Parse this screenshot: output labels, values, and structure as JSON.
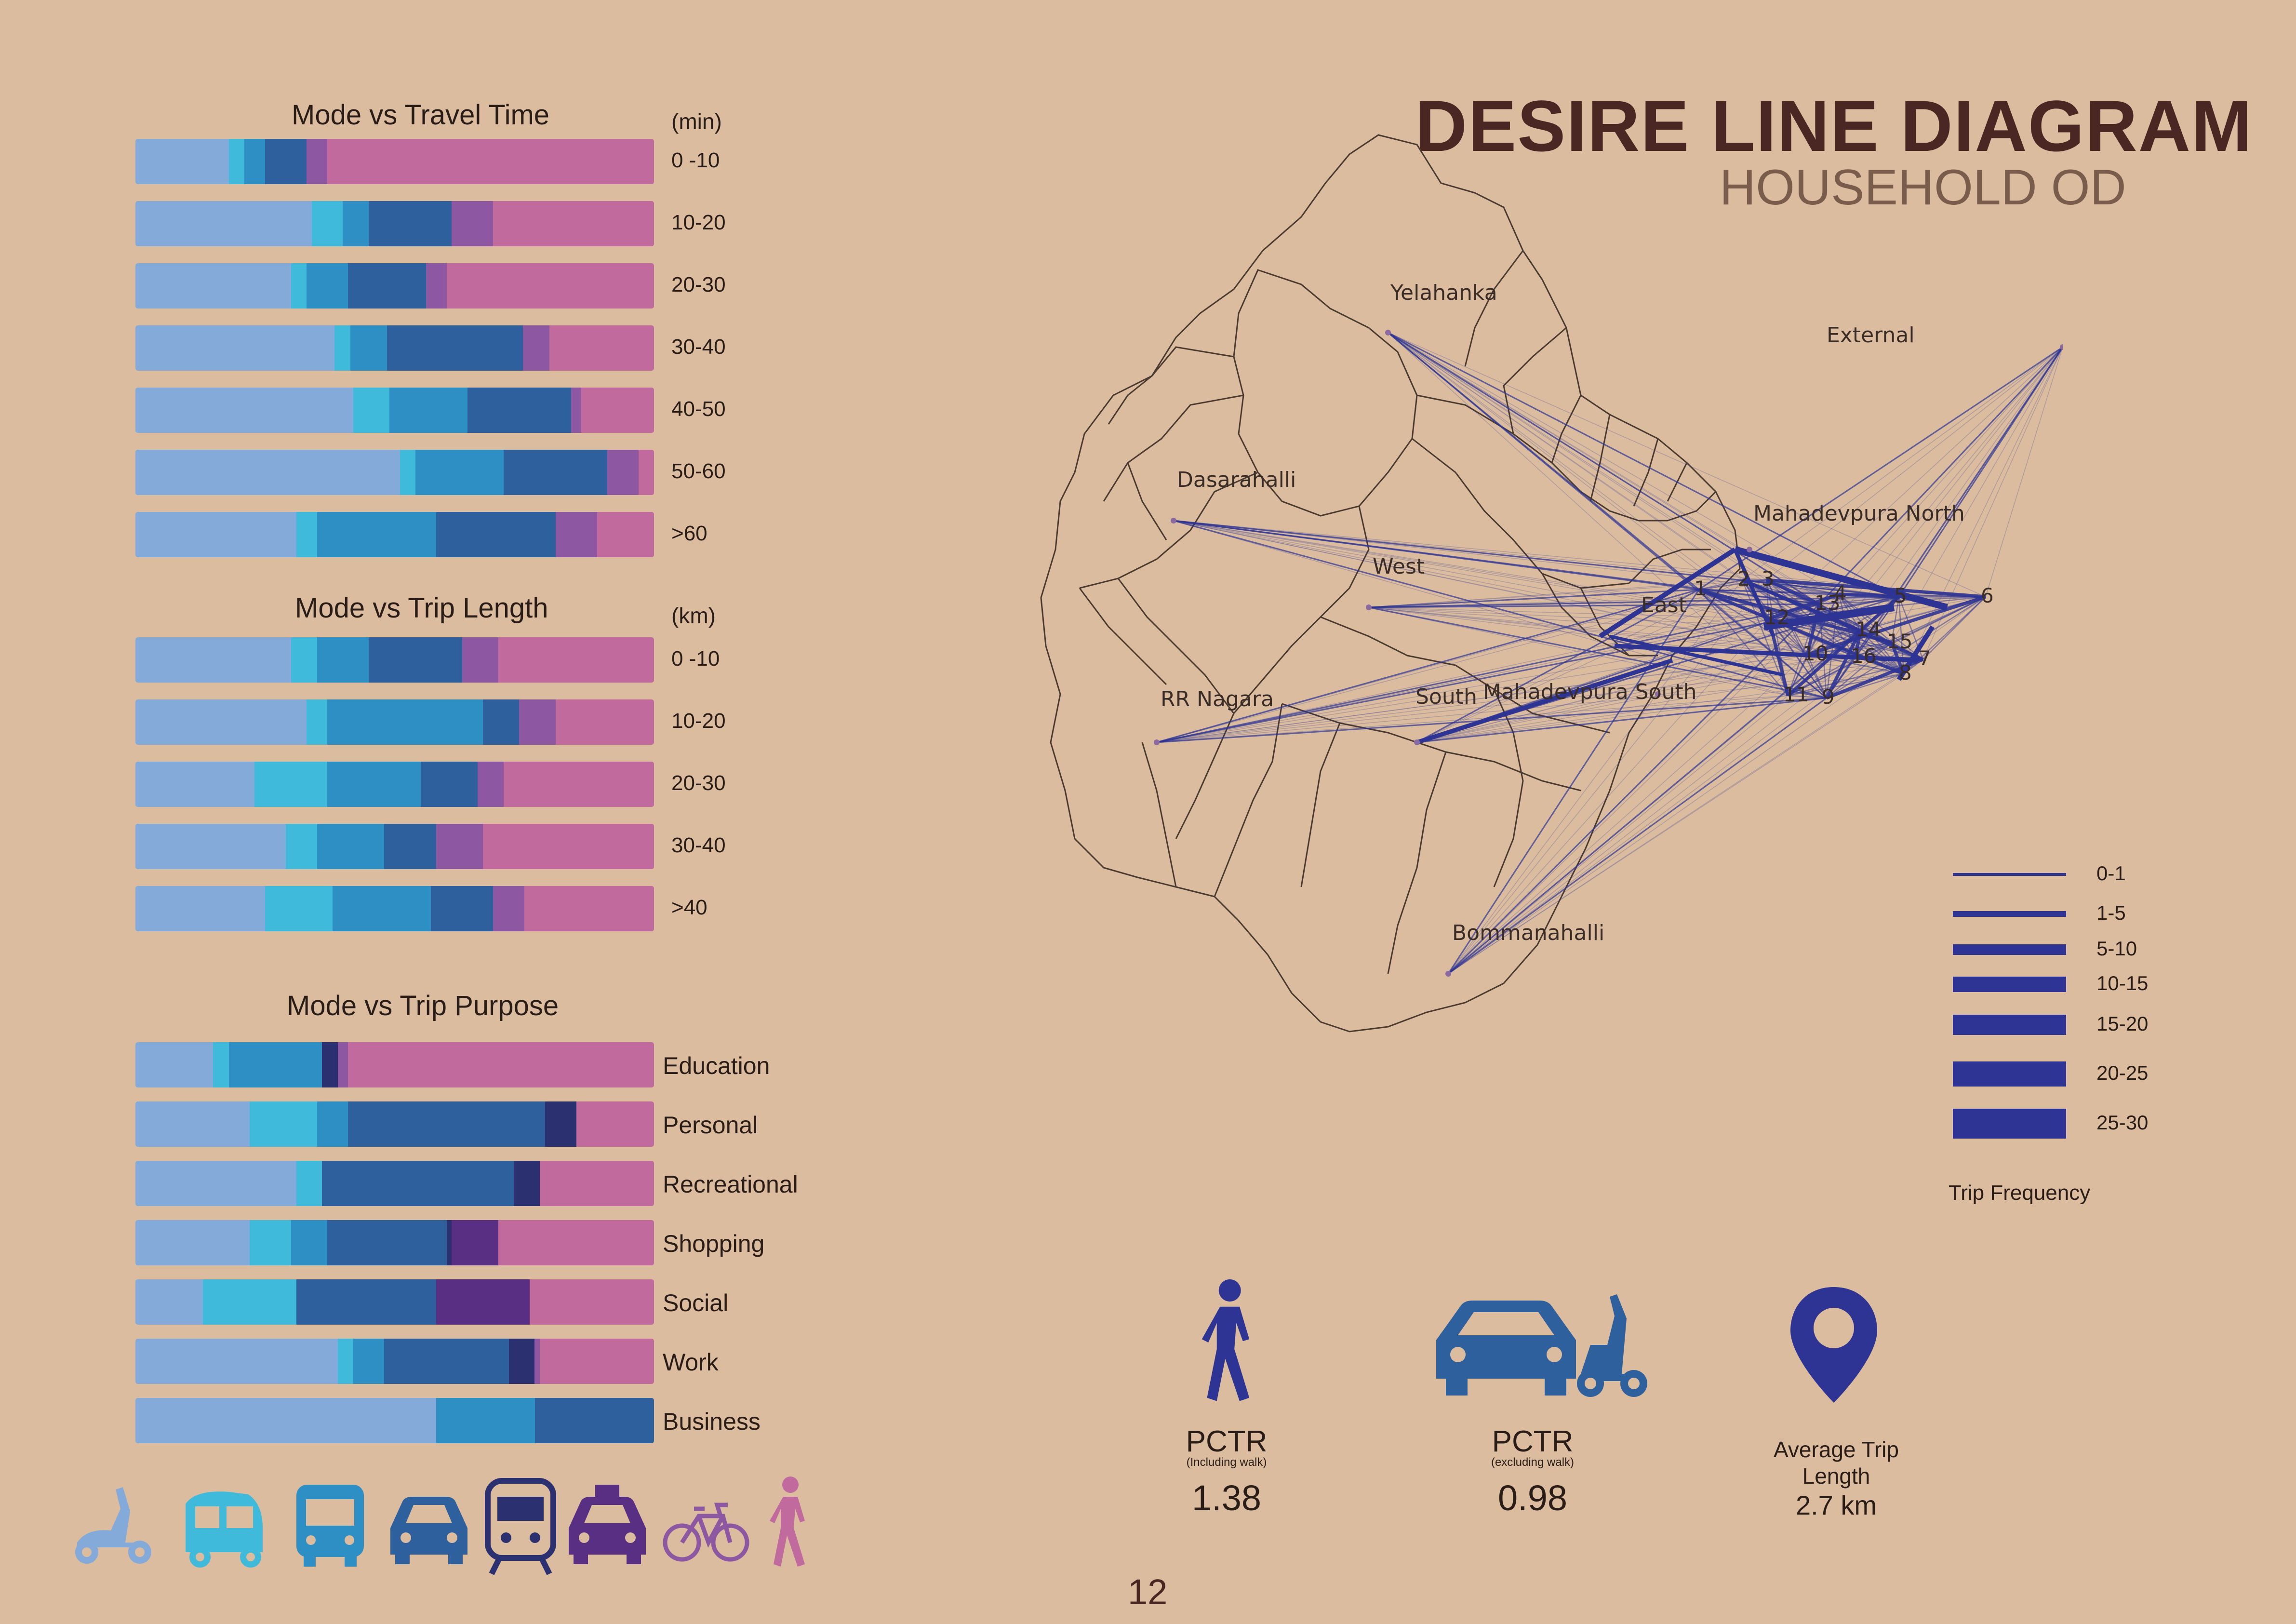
{
  "header": {
    "title": "DESIRE LINE DIAGRAM",
    "subtitle": "HOUSEHOLD OD"
  },
  "mode_colors": {
    "two_wheeler": "#84aad9",
    "auto": "#3fbadb",
    "bus": "#2e8fc4",
    "car": "#2e609d",
    "metro": "#2b3070",
    "taxi": "#582f83",
    "cycle": "#8e57a1",
    "walk": "#c06a9e"
  },
  "mode_icons": [
    "scooter-icon",
    "auto-rickshaw-icon",
    "bus-icon",
    "car-icon",
    "metro-icon",
    "taxi-icon",
    "bicycle-icon",
    "pedestrian-icon"
  ],
  "chart_data": [
    {
      "type": "bar",
      "title": "Mode vs Travel Time",
      "unit": "(min)",
      "categories": [
        "0 -10",
        "10-20",
        "20-30",
        "30-40",
        "40-50",
        "50-60",
        ">60"
      ],
      "series": [
        {
          "mode": "two_wheeler",
          "values": [
            18,
            34,
            30,
            38,
            42,
            51,
            31
          ]
        },
        {
          "mode": "auto",
          "values": [
            3,
            6,
            3,
            3,
            7,
            3,
            4
          ]
        },
        {
          "mode": "bus",
          "values": [
            4,
            5,
            8,
            7,
            15,
            17,
            23
          ]
        },
        {
          "mode": "car",
          "values": [
            8,
            16,
            15,
            26,
            20,
            20,
            23
          ]
        },
        {
          "mode": "metro",
          "values": [
            0,
            0,
            0,
            0,
            0,
            0,
            0
          ]
        },
        {
          "mode": "taxi",
          "values": [
            0,
            0,
            0,
            0,
            0,
            0,
            0
          ]
        },
        {
          "mode": "cycle",
          "values": [
            4,
            8,
            4,
            5,
            2,
            6,
            8
          ]
        },
        {
          "mode": "walk",
          "values": [
            63,
            31,
            40,
            20,
            14,
            3,
            11
          ]
        }
      ]
    },
    {
      "type": "bar",
      "title": "Mode vs Trip Length",
      "unit": "(km)",
      "categories": [
        "0 -10",
        "10-20",
        "20-30",
        "30-40",
        ">40"
      ],
      "series": [
        {
          "mode": "two_wheeler",
          "values": [
            30,
            33,
            23,
            29,
            25
          ]
        },
        {
          "mode": "auto",
          "values": [
            5,
            4,
            14,
            6,
            13
          ]
        },
        {
          "mode": "bus",
          "values": [
            10,
            30,
            18,
            13,
            19
          ]
        },
        {
          "mode": "car",
          "values": [
            18,
            7,
            11,
            10,
            12
          ]
        },
        {
          "mode": "metro",
          "values": [
            0,
            0,
            0,
            0,
            0
          ]
        },
        {
          "mode": "taxi",
          "values": [
            0,
            0,
            0,
            0,
            0
          ]
        },
        {
          "mode": "cycle",
          "values": [
            7,
            7,
            5,
            9,
            6
          ]
        },
        {
          "mode": "walk",
          "values": [
            30,
            19,
            29,
            33,
            25
          ]
        }
      ]
    },
    {
      "type": "bar",
      "title": "Mode vs Trip Purpose",
      "unit": "",
      "categories": [
        "Education",
        "Personal",
        "Recreational",
        "Shopping",
        "Social",
        "Work",
        "Business"
      ],
      "series": [
        {
          "mode": "two_wheeler",
          "values": [
            15,
            22,
            31,
            22,
            13,
            39,
            58
          ]
        },
        {
          "mode": "auto",
          "values": [
            3,
            13,
            5,
            8,
            18,
            3,
            0
          ]
        },
        {
          "mode": "bus",
          "values": [
            18,
            6,
            0,
            7,
            0,
            6,
            19
          ]
        },
        {
          "mode": "car",
          "values": [
            0,
            38,
            37,
            23,
            27,
            24,
            23
          ]
        },
        {
          "mode": "metro",
          "values": [
            3,
            6,
            5,
            1,
            0,
            5,
            0
          ]
        },
        {
          "mode": "taxi",
          "values": [
            0,
            0,
            0,
            9,
            18,
            0,
            0
          ]
        },
        {
          "mode": "cycle",
          "values": [
            2,
            0,
            0,
            0,
            0,
            1,
            0
          ]
        },
        {
          "mode": "walk",
          "values": [
            59,
            15,
            22,
            30,
            24,
            22,
            0
          ]
        }
      ]
    }
  ],
  "map": {
    "zones": [
      "Yelahanka",
      "External",
      "Dasarahalli",
      "Mahadevpura North",
      "West",
      "East",
      "RR Nagara",
      "South",
      "Mahadevpura South",
      "Bommanahalli"
    ],
    "ward_numbers": [
      "1",
      "2",
      "3",
      "4",
      "5",
      "6",
      "7",
      "8",
      "9",
      "10",
      "11",
      "12",
      "13",
      "14",
      "15",
      "16"
    ]
  },
  "legend": {
    "title": "Trip Frequency",
    "items": [
      {
        "label": "0-1",
        "weight": 1
      },
      {
        "label": "1-5",
        "weight": 2
      },
      {
        "label": "5-10",
        "weight": 3
      },
      {
        "label": "10-15",
        "weight": 4
      },
      {
        "label": "15-20",
        "weight": 5
      },
      {
        "label": "20-25",
        "weight": 6
      },
      {
        "label": "25-30",
        "weight": 7
      }
    ]
  },
  "stats": {
    "pctr_walk": {
      "label": "PCTR",
      "note": "(Including walk)",
      "value": "1.38"
    },
    "pctr_nowalk": {
      "label": "PCTR",
      "note": "(excluding walk)",
      "value": "0.98"
    },
    "avg_trip": {
      "label1": "Average Trip",
      "label2": "Length",
      "value": "2.7 km"
    }
  },
  "page_number": "12"
}
